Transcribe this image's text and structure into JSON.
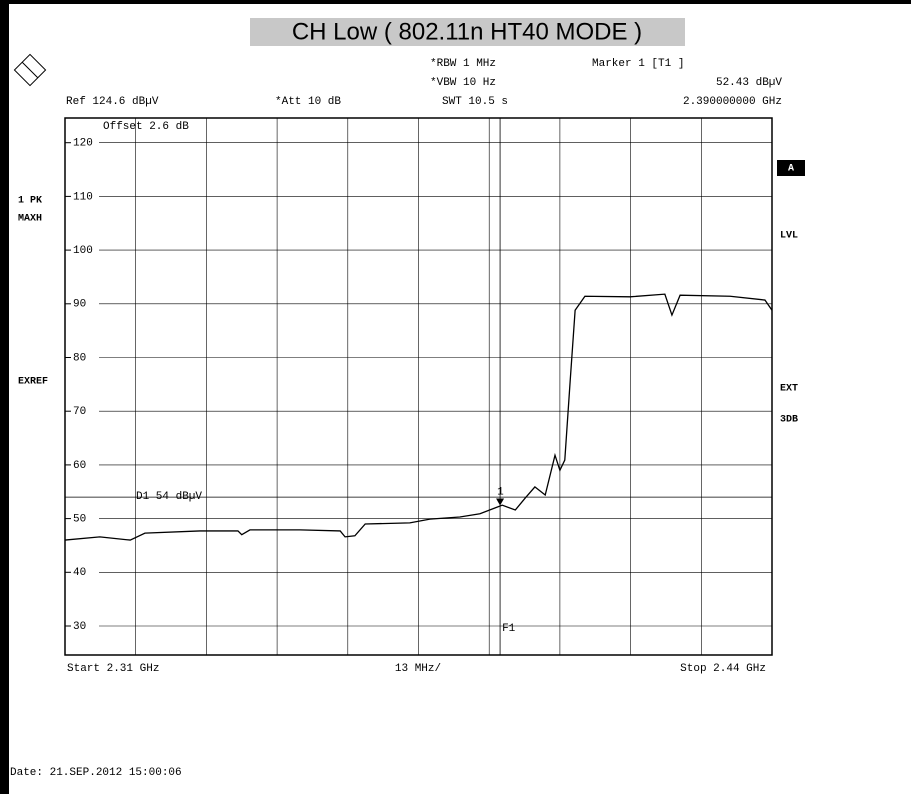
{
  "chart_data": {
    "type": "line",
    "title": "CH Low ( 802.11n HT40 MODE )",
    "settings": {
      "rbw": "*RBW 1 MHz",
      "vbw": "*VBW 10 Hz",
      "swt": "SWT 10.5 s",
      "ref": "Ref 124.6 dBµV",
      "att": "*Att 10 dB",
      "offset": "Offset 2.6 dB"
    },
    "marker": {
      "heading": "Marker 1 [T1 ]",
      "name": "1",
      "x": 2.39,
      "value": 52.43,
      "value_label": "52.43 dBµV",
      "x_label": "2.390000000 GHz"
    },
    "display_line": {
      "label": "D1 54 dBµV",
      "value": 54
    },
    "frequency_line": {
      "label": "F1",
      "x": 2.39
    },
    "left_labels": [
      "1 PK",
      "MAXH",
      "EXREF"
    ],
    "right_labels": [
      "A",
      "LVL",
      "EXT",
      "3DB"
    ],
    "start_label": "Start 2.31 GHz",
    "span_label": "13 MHz/",
    "stop_label": "Stop 2.44 GHz",
    "date": "Date: 21.SEP.2012  15:00:06",
    "xlim": [
      2.31,
      2.44
    ],
    "xticks": [
      2.31,
      2.323,
      2.336,
      2.349,
      2.362,
      2.375,
      2.388,
      2.401,
      2.414,
      2.427,
      2.44
    ],
    "ylim": [
      24.6,
      124.6
    ],
    "yticks": [
      30,
      40,
      50,
      60,
      70,
      80,
      90,
      100,
      110,
      120
    ],
    "grid": true,
    "color": "#000000",
    "x": [
      2.31,
      2.3164,
      2.322,
      2.3247,
      2.3348,
      2.3418,
      2.3425,
      2.344,
      2.3532,
      2.3606,
      2.3615,
      2.3633,
      2.3652,
      2.3734,
      2.3771,
      2.3826,
      2.3863,
      2.3891,
      2.3904,
      2.3928,
      2.3946,
      2.3964,
      2.3983,
      2.4001,
      2.401,
      2.4019,
      2.4029,
      2.4038,
      2.4056,
      2.4139,
      2.4203,
      2.4216,
      2.4231,
      2.4323,
      2.4387,
      2.44
    ],
    "values": [
      46.0,
      46.6,
      46.0,
      47.3,
      47.7,
      47.7,
      47.0,
      47.9,
      47.9,
      47.7,
      46.6,
      46.8,
      49.0,
      49.2,
      49.9,
      50.3,
      50.9,
      52.0,
      52.5,
      51.6,
      53.8,
      55.9,
      54.4,
      61.8,
      59.0,
      60.9,
      75.8,
      88.8,
      91.4,
      91.3,
      91.8,
      87.9,
      91.6,
      91.4,
      90.7,
      88.8
    ]
  }
}
